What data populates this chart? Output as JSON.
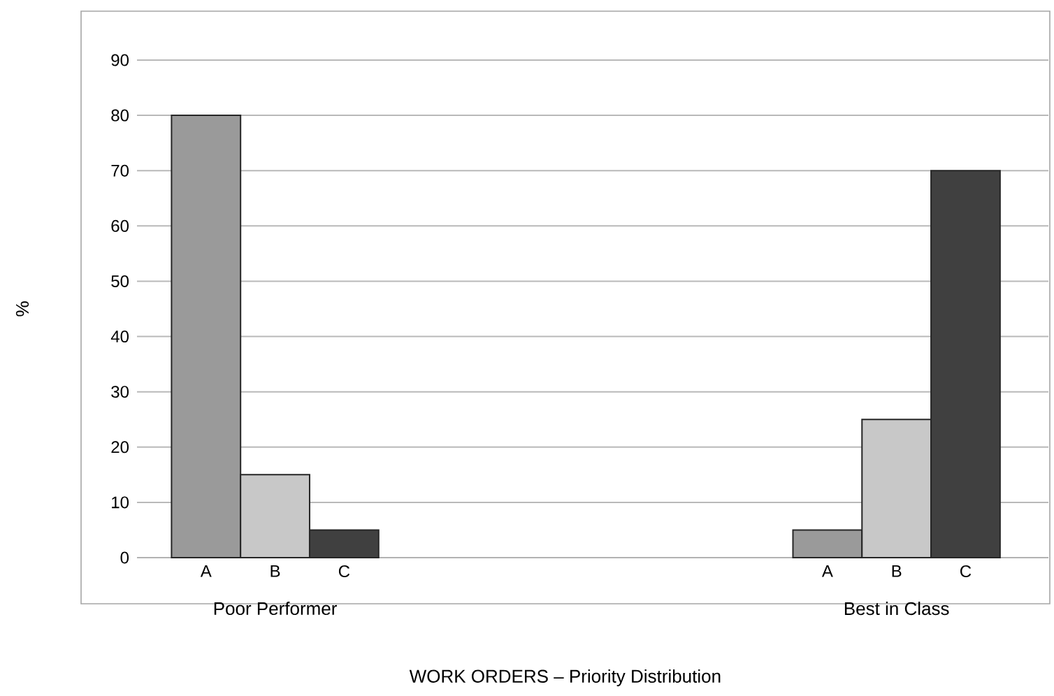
{
  "chart_data": {
    "type": "bar",
    "ylabel": "%",
    "categories": [
      "A",
      "B",
      "C",
      null,
      null,
      null,
      null,
      null,
      null,
      "A",
      "B",
      "C"
    ],
    "values": [
      80,
      15,
      5,
      null,
      null,
      null,
      null,
      null,
      null,
      5,
      25,
      70
    ],
    "colors": [
      "#9a9a9a",
      "#c8c8c8",
      "#404040",
      null,
      null,
      null,
      null,
      null,
      null,
      "#9a9a9a",
      "#c8c8c8",
      "#404040"
    ],
    "ylim": [
      0,
      90
    ],
    "yticks": [
      0,
      10,
      20,
      30,
      40,
      50,
      60,
      70,
      80,
      90
    ],
    "grid": "y",
    "annotations": [
      "Poor Performer",
      "Best in Class",
      "WORK ORDERS – Priority Distribution"
    ]
  }
}
